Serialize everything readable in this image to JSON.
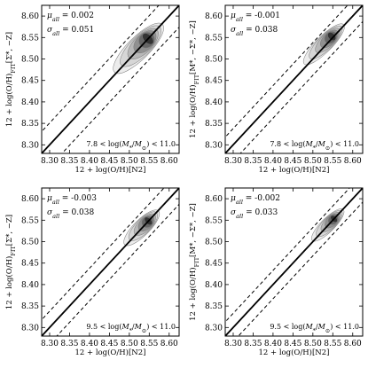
{
  "chart_data": [
    {
      "type": "contour",
      "xlabel": "12 + log(O/H)[N2]",
      "ylabel": "12 + log(O/H)FIT[Σ*, −Z]",
      "xlim": [
        8.28,
        8.625
      ],
      "ylim": [
        8.28,
        8.625
      ],
      "xticks": [
        "8.30",
        "8.35",
        "8.40",
        "8.45",
        "8.50",
        "8.55",
        "8.60"
      ],
      "yticks": [
        "8.30",
        "8.35",
        "8.40",
        "8.45",
        "8.50",
        "8.55",
        "8.60"
      ],
      "annotations": [
        "μall = 0.002",
        "σall = 0.051",
        "7.8 < log(M*/M⊙) < 11.0"
      ],
      "mu_all": 0.002,
      "sigma_all": 0.051,
      "lines": [
        {
          "style": "solid",
          "slope": 1,
          "offset": 0.0
        },
        {
          "style": "dashed",
          "slope": 1,
          "offset": 0.051
        },
        {
          "style": "dashed",
          "slope": 1,
          "offset": -0.051
        }
      ],
      "density": {
        "center": [
          8.55,
          8.55
        ],
        "spread_along": 0.085,
        "spread_across": 0.028
      }
    },
    {
      "type": "contour",
      "xlabel": "12 + log(O/H)[N2]",
      "ylabel": "12 + log(O/H)FIT[M*, −Σ*, −Z]",
      "xlim": [
        8.28,
        8.625
      ],
      "ylim": [
        8.28,
        8.625
      ],
      "xticks": [
        "8.30",
        "8.35",
        "8.40",
        "8.45",
        "8.50",
        "8.55",
        "8.60"
      ],
      "yticks": [
        "8.30",
        "8.35",
        "8.40",
        "8.45",
        "8.50",
        "8.55",
        "8.60"
      ],
      "annotations": [
        "μall = -0.001",
        "σall = 0.038",
        "7.8 < log(M*/M⊙) < 11.0"
      ],
      "mu_all": -0.001,
      "sigma_all": 0.038,
      "lines": [
        {
          "style": "solid",
          "slope": 1,
          "offset": 0.0
        },
        {
          "style": "dashed",
          "slope": 1,
          "offset": 0.038
        },
        {
          "style": "dashed",
          "slope": 1,
          "offset": -0.038
        }
      ],
      "density": {
        "center": [
          8.55,
          8.555
        ],
        "spread_along": 0.07,
        "spread_across": 0.02
      }
    },
    {
      "type": "contour",
      "xlabel": "12 + log(O/H)[N2]",
      "ylabel": "12 + log(O/H)FIT[Σ*, −Z]",
      "xlim": [
        8.28,
        8.625
      ],
      "ylim": [
        8.28,
        8.625
      ],
      "xticks": [
        "8.30",
        "8.35",
        "8.40",
        "8.45",
        "8.50",
        "8.55",
        "8.60"
      ],
      "yticks": [
        "8.30",
        "8.35",
        "8.40",
        "8.45",
        "8.50",
        "8.55",
        "8.60"
      ],
      "annotations": [
        "μall = -0.003",
        "σall = 0.038",
        "9.5 < log(M*/M⊙) < 11.0"
      ],
      "mu_all": -0.003,
      "sigma_all": 0.038,
      "lines": [
        {
          "style": "solid",
          "slope": 1,
          "offset": 0.0
        },
        {
          "style": "dashed",
          "slope": 1,
          "offset": 0.038
        },
        {
          "style": "dashed",
          "slope": 1,
          "offset": -0.038
        }
      ],
      "density": {
        "center": [
          8.55,
          8.55
        ],
        "spread_along": 0.06,
        "spread_across": 0.02
      }
    },
    {
      "type": "contour",
      "xlabel": "12 + log(O/H)[N2]",
      "ylabel": "12 + log(O/H)FIT[M*, −Σ*, −Z]",
      "xlim": [
        8.28,
        8.625
      ],
      "ylim": [
        8.28,
        8.625
      ],
      "xticks": [
        "8.30",
        "8.35",
        "8.40",
        "8.45",
        "8.50",
        "8.55",
        "8.60"
      ],
      "yticks": [
        "8.30",
        "8.35",
        "8.40",
        "8.45",
        "8.50",
        "8.55",
        "8.60"
      ],
      "annotations": [
        "μall = -0.002",
        "σall = 0.033",
        "9.5 < log(M*/M⊙) < 11.0"
      ],
      "mu_all": -0.002,
      "sigma_all": 0.033,
      "lines": [
        {
          "style": "solid",
          "slope": 1,
          "offset": 0.0
        },
        {
          "style": "dashed",
          "slope": 1,
          "offset": 0.033
        },
        {
          "style": "dashed",
          "slope": 1,
          "offset": -0.033
        }
      ],
      "density": {
        "center": [
          8.555,
          8.555
        ],
        "spread_along": 0.055,
        "spread_across": 0.017
      }
    }
  ]
}
